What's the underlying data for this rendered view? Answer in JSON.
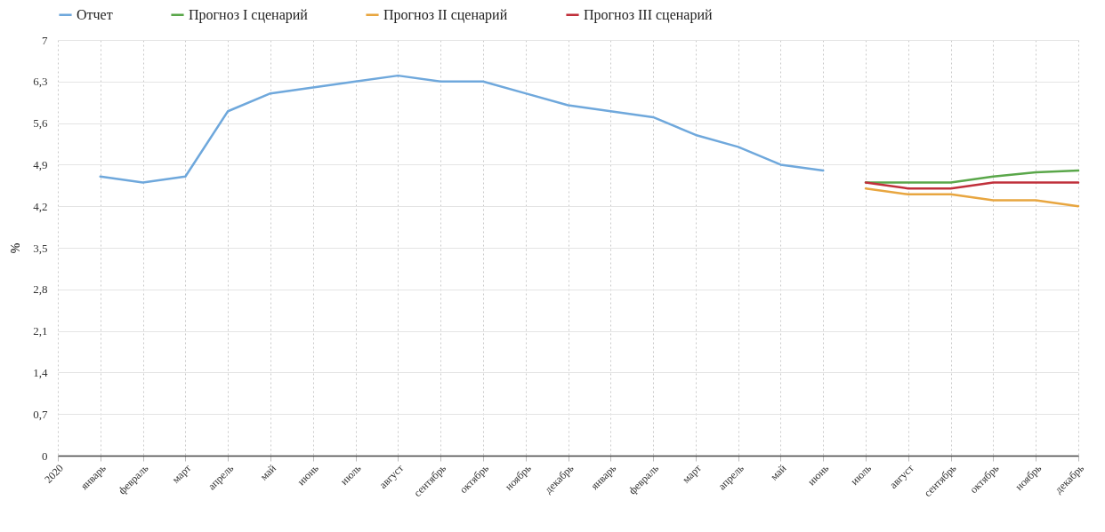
{
  "chart_data": {
    "type": "line",
    "ylabel": "%",
    "categories": [
      "2020",
      "январь",
      "февраль",
      "март",
      "апрель",
      "май",
      "июнь",
      "июль",
      "август",
      "сентябрь",
      "октябрь",
      "ноябрь",
      "декабрь",
      "январь",
      "февраль",
      "март",
      "апрель",
      "май",
      "июнь",
      "июль",
      "август",
      "сентябрь",
      "октябрь",
      "ноябрь",
      "декабрь"
    ],
    "series": [
      {
        "name": "Отчет",
        "color": "#6fa8dc",
        "values": [
          null,
          4.7,
          4.6,
          4.7,
          5.8,
          6.1,
          6.2,
          6.3,
          6.4,
          6.3,
          6.3,
          6.1,
          5.9,
          5.8,
          5.7,
          5.4,
          5.2,
          4.9,
          4.8,
          null,
          null,
          null,
          null,
          null,
          null
        ]
      },
      {
        "name": "Прогноз I сценарий",
        "color": "#5aa74a",
        "values": [
          null,
          null,
          null,
          null,
          null,
          null,
          null,
          null,
          null,
          null,
          null,
          null,
          null,
          null,
          null,
          null,
          null,
          null,
          null,
          4.6,
          4.6,
          4.6,
          4.7,
          4.77,
          4.8
        ]
      },
      {
        "name": "Прогноз II сценарий",
        "color": "#e8a640",
        "values": [
          null,
          null,
          null,
          null,
          null,
          null,
          null,
          null,
          null,
          null,
          null,
          null,
          null,
          null,
          null,
          null,
          null,
          null,
          null,
          4.5,
          4.4,
          4.4,
          4.3,
          4.3,
          4.2
        ]
      },
      {
        "name": "Прогноз III сценарий",
        "color": "#c0303b",
        "values": [
          null,
          null,
          null,
          null,
          null,
          null,
          null,
          null,
          null,
          null,
          null,
          null,
          null,
          null,
          null,
          null,
          null,
          null,
          null,
          4.6,
          4.5,
          4.5,
          4.6,
          4.6,
          4.6
        ]
      }
    ],
    "ylim": [
      0,
      7
    ],
    "yticks": [
      0,
      {
        "value": 0.7,
        "label": "0,7"
      },
      {
        "value": 1.4,
        "label": "1,4"
      },
      {
        "value": 2.1,
        "label": "2,1"
      },
      {
        "value": 2.8,
        "label": "2,8"
      },
      {
        "value": 3.5,
        "label": "3,5"
      },
      {
        "value": 4.2,
        "label": "4,2"
      },
      {
        "value": 4.9,
        "label": "4,9"
      },
      {
        "value": 5.6,
        "label": "5,6"
      },
      {
        "value": 6.3,
        "label": "6,3"
      },
      7
    ],
    "grid": true,
    "legend": "top",
    "marker": "none",
    "line_style": "solid"
  }
}
